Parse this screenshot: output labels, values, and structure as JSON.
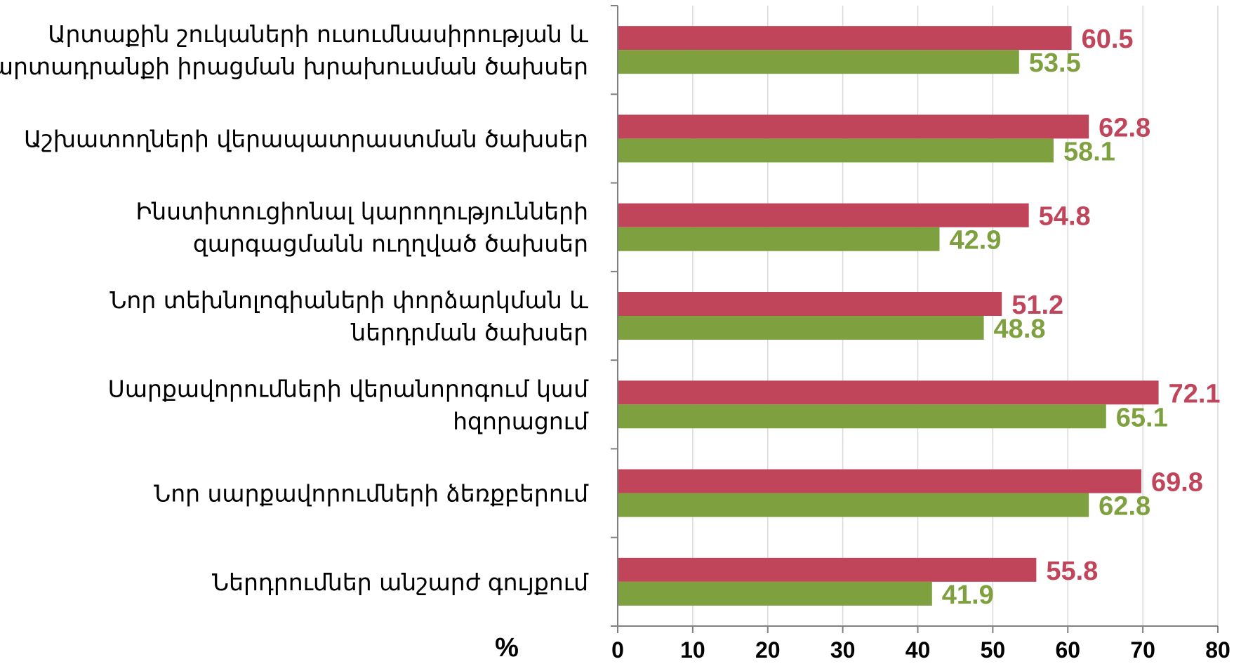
{
  "chart_data": {
    "type": "bar",
    "orientation": "horizontal",
    "categories": [
      [
        "Արտաքին շուկաների ուսումնասիրության և",
        "արտադրանքի իրացման խրախուսման ծախսեր"
      ],
      [
        "Աշխատողների վերապատրաստման ծախսեր"
      ],
      [
        "Ինստիտուցիոնալ կարողությունների",
        "զարգացմանն ուղղված ծախսեր"
      ],
      [
        "Նոր տեխնոլոգիաների փորձարկման և",
        "ներդրման ծախսեր"
      ],
      [
        "Սարքավորումների վերանորոգում կամ",
        "հզորացում"
      ],
      [
        "Նոր սարքավորումների ձեռքբերում"
      ],
      [
        "Ներդրումներ անշարժ գույքում"
      ]
    ],
    "series": [
      {
        "color": "#c0455a",
        "values": [
          60.5,
          62.8,
          54.8,
          51.2,
          72.1,
          69.8,
          55.8
        ]
      },
      {
        "color": "#7ea03e",
        "values": [
          53.5,
          58.1,
          42.9,
          48.8,
          65.1,
          62.8,
          41.9
        ]
      }
    ],
    "value_labels_1": [
      "60.5",
      "62.8",
      "54.8",
      "51.2",
      "72.1",
      "69.8",
      "55.8"
    ],
    "value_labels_2": [
      "53.5",
      "58.1",
      "42.9",
      "48.8",
      "65.1",
      "62.8",
      "41.9"
    ],
    "xlim": [
      0,
      80
    ],
    "xticks": [
      0,
      10,
      20,
      30,
      40,
      50,
      60,
      70,
      80
    ],
    "tick_labels": [
      "0",
      "10",
      "20",
      "30",
      "40",
      "50",
      "60",
      "70",
      "80"
    ],
    "xlabel": "%",
    "grid": "vertical",
    "legend": "none"
  }
}
